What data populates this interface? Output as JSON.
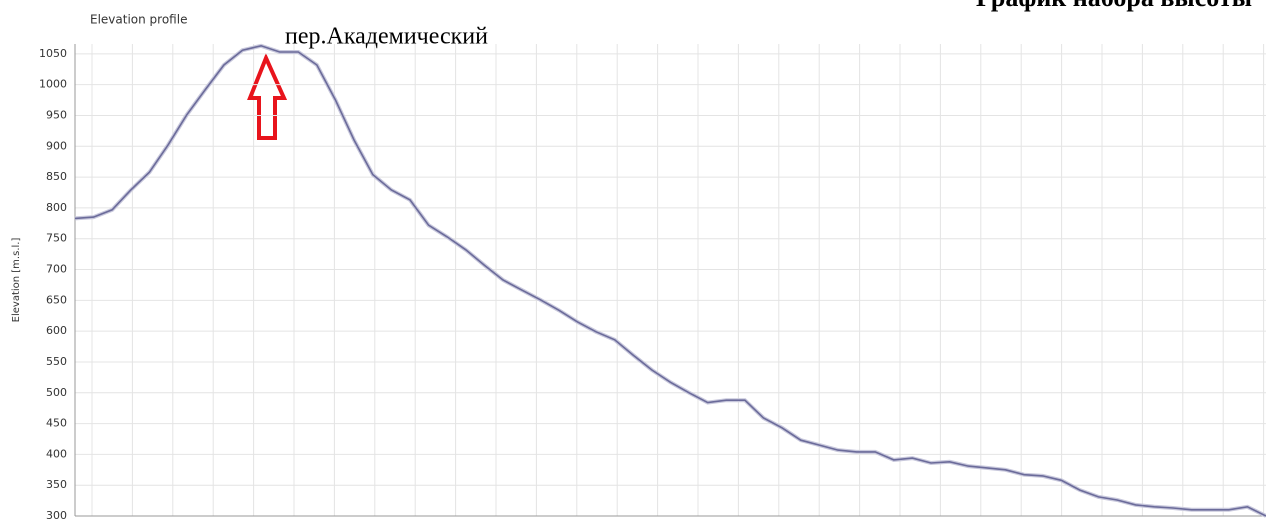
{
  "chart_data": {
    "type": "line",
    "title": "Elevation profile",
    "heading": "График набора высоты",
    "annotation": "пер.Академический",
    "ylabel": "Elevation [m.s.l.]",
    "categories": [
      null,
      null,
      null,
      null,
      null,
      null,
      null,
      null,
      null,
      null,
      null,
      null,
      null,
      null,
      null,
      null,
      null,
      null,
      null,
      null,
      null,
      null,
      null,
      null,
      null,
      null,
      null,
      null,
      null,
      null,
      null,
      null,
      null,
      null,
      null,
      null,
      null,
      null,
      null,
      null,
      null,
      null,
      null,
      null,
      null,
      null,
      null,
      null,
      null,
      null,
      null,
      null,
      null,
      null,
      null,
      null,
      null,
      null,
      null,
      null,
      null,
      null,
      null,
      null,
      null
    ],
    "series": [
      {
        "name": "Elevation",
        "color": "#6b6b9a",
        "values": [
          783,
          785,
          797,
          829,
          858,
          902,
          951,
          992,
          1032,
          1056,
          1063,
          1053,
          1053,
          1032,
          975,
          910,
          854,
          829,
          813,
          772,
          753,
          732,
          707,
          683,
          667,
          651,
          634,
          615,
          599,
          586,
          561,
          537,
          517,
          500,
          484,
          488,
          488,
          459,
          443,
          423,
          415,
          407,
          404,
          404,
          391,
          394,
          386,
          388,
          381,
          378,
          375,
          367,
          365,
          358,
          342,
          331,
          326,
          318,
          315,
          313,
          310,
          310,
          310,
          315,
          300
        ]
      }
    ],
    "ylim": [
      300,
      1066
    ],
    "yticks": [
      300,
      350,
      400,
      450,
      500,
      550,
      600,
      650,
      700,
      750,
      800,
      850,
      900,
      950,
      1000,
      1050
    ],
    "grid": true
  }
}
